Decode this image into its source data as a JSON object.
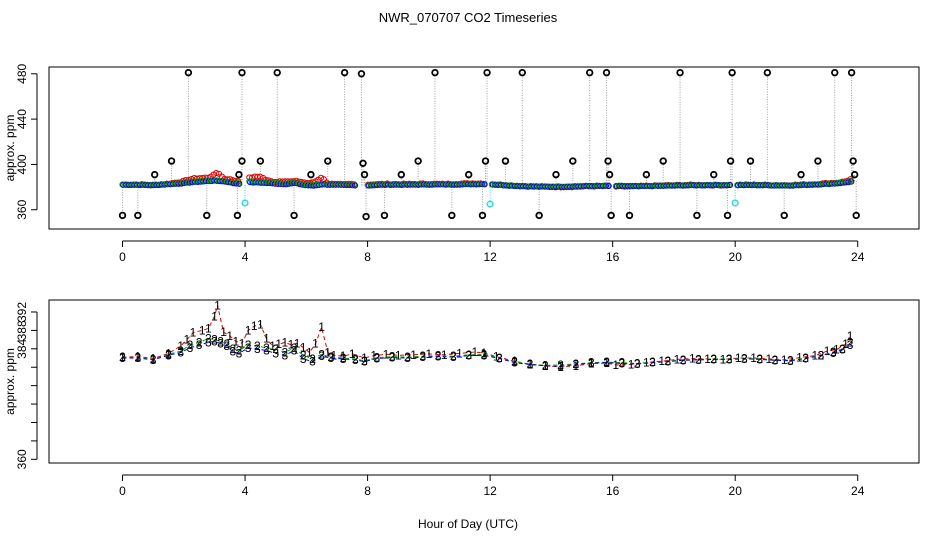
{
  "title": "NWR_070707  CO2 Timeseries",
  "xlabel": "Hour of Day (UTC)",
  "colors": {
    "black": "#000000",
    "red": "#e00000",
    "green": "#00b000",
    "blue": "#0000e0",
    "cyan": "#30d8d8",
    "gray": "#a0a0a0"
  },
  "chart_data": [
    {
      "name": "top-panel",
      "type": "scatter",
      "ylabel": "approx. ppm",
      "xlim": [
        -2.4,
        26.0
      ],
      "ylim": [
        343,
        486
      ],
      "xticks": [
        0,
        4,
        8,
        12,
        16,
        20,
        24
      ],
      "xtick_labels": [
        "0",
        "4",
        "8",
        "12",
        "16",
        "20",
        "24"
      ],
      "yticks": [
        360,
        400,
        440,
        480
      ],
      "ytick_labels": [
        "360",
        "400",
        "440",
        "480"
      ],
      "spikes": [
        {
          "x": 0.0,
          "y": 355
        },
        {
          "x": 0.5,
          "y": 355
        },
        {
          "x": 1.05,
          "y": 391
        },
        {
          "x": 1.6,
          "y": 403
        },
        {
          "x": 2.15,
          "y": 481
        },
        {
          "x": 2.75,
          "y": 355
        },
        {
          "x": 3.75,
          "y": 355
        },
        {
          "x": 3.8,
          "y": 391
        },
        {
          "x": 3.9,
          "y": 403
        },
        {
          "x": 3.9,
          "y": 481
        },
        {
          "x": 4.5,
          "y": 403
        },
        {
          "x": 5.05,
          "y": 481
        },
        {
          "x": 5.6,
          "y": 355
        },
        {
          "x": 6.15,
          "y": 391
        },
        {
          "x": 6.7,
          "y": 403
        },
        {
          "x": 7.25,
          "y": 481
        },
        {
          "x": 7.8,
          "y": 480
        },
        {
          "x": 7.85,
          "y": 401
        },
        {
          "x": 7.9,
          "y": 391
        },
        {
          "x": 7.95,
          "y": 354
        },
        {
          "x": 8.55,
          "y": 355
        },
        {
          "x": 9.1,
          "y": 391
        },
        {
          "x": 9.65,
          "y": 403
        },
        {
          "x": 10.2,
          "y": 481
        },
        {
          "x": 10.75,
          "y": 355
        },
        {
          "x": 11.3,
          "y": 391
        },
        {
          "x": 11.75,
          "y": 355
        },
        {
          "x": 11.85,
          "y": 403
        },
        {
          "x": 11.9,
          "y": 481
        },
        {
          "x": 12.5,
          "y": 403
        },
        {
          "x": 13.05,
          "y": 481
        },
        {
          "x": 13.6,
          "y": 355
        },
        {
          "x": 14.15,
          "y": 391
        },
        {
          "x": 14.7,
          "y": 403
        },
        {
          "x": 15.25,
          "y": 481
        },
        {
          "x": 15.8,
          "y": 481
        },
        {
          "x": 15.85,
          "y": 403
        },
        {
          "x": 15.9,
          "y": 391
        },
        {
          "x": 15.95,
          "y": 355
        },
        {
          "x": 16.55,
          "y": 355
        },
        {
          "x": 17.1,
          "y": 391
        },
        {
          "x": 17.65,
          "y": 403
        },
        {
          "x": 18.2,
          "y": 481
        },
        {
          "x": 18.75,
          "y": 355
        },
        {
          "x": 19.3,
          "y": 391
        },
        {
          "x": 19.75,
          "y": 355
        },
        {
          "x": 19.85,
          "y": 403
        },
        {
          "x": 19.9,
          "y": 481
        },
        {
          "x": 20.5,
          "y": 403
        },
        {
          "x": 21.05,
          "y": 481
        },
        {
          "x": 21.6,
          "y": 355
        },
        {
          "x": 22.15,
          "y": 391
        },
        {
          "x": 22.7,
          "y": 403
        },
        {
          "x": 23.25,
          "y": 481
        },
        {
          "x": 23.8,
          "y": 481
        },
        {
          "x": 23.85,
          "y": 403
        },
        {
          "x": 23.9,
          "y": 391
        },
        {
          "x": 23.95,
          "y": 355
        }
      ],
      "cyan_points": [
        {
          "x": 4.0,
          "y": 366
        },
        {
          "x": 12.0,
          "y": 365
        },
        {
          "x": 20.0,
          "y": 366
        }
      ]
    },
    {
      "name": "bottom-panel",
      "type": "scatter",
      "ylabel": "approx. ppm",
      "xlim": [
        -2.4,
        26.0
      ],
      "ylim": [
        359.2,
        394.6
      ],
      "xticks": [
        0,
        4,
        8,
        12,
        16,
        20,
        24
      ],
      "xtick_labels": [
        "0",
        "4",
        "8",
        "12",
        "16",
        "20",
        "24"
      ],
      "yticks": [
        360,
        364,
        368,
        372,
        376,
        380,
        384,
        388,
        392
      ],
      "ytick_labels": [
        "360",
        "",
        "",
        "",
        "",
        "",
        "384",
        "388",
        "392"
      ],
      "series": [
        {
          "name": "1",
          "color": "red",
          "marker": "1",
          "points": [
            [
              0.0,
              382.2
            ],
            [
              0.5,
              382.3
            ],
            [
              1.0,
              381.9
            ],
            [
              1.5,
              383.0
            ],
            [
              1.9,
              384.6
            ],
            [
              2.1,
              386.0
            ],
            [
              2.3,
              387.5
            ],
            [
              2.6,
              388.0
            ],
            [
              2.8,
              388.4
            ],
            [
              3.0,
              391.0
            ],
            [
              3.1,
              393.4
            ],
            [
              3.3,
              387.6
            ],
            [
              3.5,
              386.8
            ],
            [
              3.7,
              385.6
            ],
            [
              3.9,
              385.2
            ],
            [
              4.1,
              388.0
            ],
            [
              4.3,
              388.9
            ],
            [
              4.5,
              389.3
            ],
            [
              4.7,
              386.2
            ],
            [
              4.9,
              384.6
            ],
            [
              5.1,
              385.0
            ],
            [
              5.3,
              385.4
            ],
            [
              5.5,
              384.9
            ],
            [
              5.7,
              385.2
            ],
            [
              5.9,
              384.3
            ],
            [
              6.1,
              383.2
            ],
            [
              6.3,
              385.1
            ],
            [
              6.5,
              388.7
            ],
            [
              6.7,
              383.2
            ],
            [
              6.9,
              382.6
            ],
            [
              7.2,
              382.4
            ],
            [
              7.5,
              382.9
            ],
            [
              7.9,
              382.0
            ],
            [
              8.2,
              382.5
            ],
            [
              8.6,
              382.8
            ],
            [
              9.0,
              382.6
            ],
            [
              9.5,
              382.7
            ],
            [
              10.0,
              382.9
            ],
            [
              10.5,
              382.7
            ],
            [
              11.0,
              383.0
            ],
            [
              11.5,
              383.3
            ],
            [
              11.8,
              383.1
            ],
            [
              12.2,
              382.3
            ],
            [
              12.8,
              381.3
            ],
            [
              13.3,
              380.6
            ],
            [
              13.8,
              380.3
            ],
            [
              14.3,
              380.1
            ],
            [
              14.8,
              380.3
            ],
            [
              15.3,
              380.8
            ],
            [
              15.8,
              380.9
            ],
            [
              16.1,
              380.5
            ],
            [
              16.6,
              380.6
            ],
            [
              17.1,
              381.0
            ],
            [
              17.6,
              381.3
            ],
            [
              18.1,
              381.7
            ],
            [
              18.6,
              381.9
            ],
            [
              19.1,
              381.8
            ],
            [
              19.6,
              381.7
            ],
            [
              20.1,
              382.0
            ],
            [
              20.6,
              382.0
            ],
            [
              21.1,
              381.8
            ],
            [
              21.6,
              381.6
            ],
            [
              22.1,
              382.1
            ],
            [
              22.6,
              382.5
            ],
            [
              23.0,
              383.5
            ],
            [
              23.3,
              383.8
            ],
            [
              23.6,
              385.0
            ],
            [
              23.75,
              386.8
            ]
          ]
        },
        {
          "name": "2",
          "color": "green",
          "marker": "2",
          "points": [
            [
              0.0,
              382.2
            ],
            [
              0.5,
              382.1
            ],
            [
              1.0,
              381.7
            ],
            [
              1.5,
              382.8
            ],
            [
              1.9,
              383.5
            ],
            [
              2.2,
              384.8
            ],
            [
              2.5,
              385.4
            ],
            [
              2.8,
              386.2
            ],
            [
              3.0,
              386.0
            ],
            [
              3.2,
              385.6
            ],
            [
              3.4,
              385.0
            ],
            [
              3.6,
              384.0
            ],
            [
              3.8,
              383.6
            ],
            [
              4.1,
              384.8
            ],
            [
              4.4,
              384.6
            ],
            [
              4.7,
              384.2
            ],
            [
              5.0,
              384.0
            ],
            [
              5.3,
              383.2
            ],
            [
              5.6,
              384.2
            ],
            [
              5.9,
              382.6
            ],
            [
              6.2,
              381.8
            ],
            [
              6.5,
              382.8
            ],
            [
              6.8,
              382.2
            ],
            [
              7.2,
              382.0
            ],
            [
              7.6,
              381.8
            ],
            [
              7.9,
              381.4
            ],
            [
              8.3,
              382.1
            ],
            [
              8.8,
              382.3
            ],
            [
              9.3,
              382.2
            ],
            [
              9.8,
              382.4
            ],
            [
              10.3,
              382.5
            ],
            [
              10.8,
              382.4
            ],
            [
              11.3,
              382.7
            ],
            [
              11.8,
              382.8
            ],
            [
              12.3,
              382.0
            ],
            [
              12.8,
              381.2
            ],
            [
              13.3,
              380.7
            ],
            [
              13.8,
              380.4
            ],
            [
              14.3,
              380.5
            ],
            [
              14.8,
              380.7
            ],
            [
              15.3,
              381.0
            ],
            [
              15.8,
              381.1
            ],
            [
              16.3,
              381.0
            ],
            [
              16.8,
              380.8
            ],
            [
              17.3,
              381.1
            ],
            [
              17.8,
              381.3
            ],
            [
              18.3,
              381.6
            ],
            [
              18.8,
              381.7
            ],
            [
              19.3,
              381.8
            ],
            [
              19.8,
              381.8
            ],
            [
              20.3,
              381.9
            ],
            [
              20.8,
              381.8
            ],
            [
              21.3,
              381.6
            ],
            [
              21.8,
              381.5
            ],
            [
              22.3,
              382.0
            ],
            [
              22.8,
              382.6
            ],
            [
              23.2,
              383.3
            ],
            [
              23.5,
              384.0
            ],
            [
              23.75,
              385.4
            ]
          ]
        },
        {
          "name": "3",
          "color": "blue",
          "marker": "3",
          "points": [
            [
              0.0,
              382.0
            ],
            [
              0.5,
              382.0
            ],
            [
              1.0,
              381.6
            ],
            [
              1.5,
              382.6
            ],
            [
              1.9,
              383.2
            ],
            [
              2.2,
              384.2
            ],
            [
              2.5,
              384.8
            ],
            [
              2.8,
              385.4
            ],
            [
              3.0,
              385.6
            ],
            [
              3.2,
              385.2
            ],
            [
              3.4,
              384.6
            ],
            [
              3.6,
              383.4
            ],
            [
              3.8,
              383.0
            ],
            [
              4.1,
              384.2
            ],
            [
              4.4,
              384.0
            ],
            [
              4.7,
              383.6
            ],
            [
              5.0,
              383.0
            ],
            [
              5.3,
              382.6
            ],
            [
              5.6,
              383.6
            ],
            [
              5.9,
              381.8
            ],
            [
              6.2,
              381.2
            ],
            [
              6.5,
              382.4
            ],
            [
              6.8,
              382.0
            ],
            [
              7.2,
              381.8
            ],
            [
              7.6,
              381.6
            ],
            [
              7.9,
              381.2
            ],
            [
              8.3,
              381.9
            ],
            [
              8.8,
              382.1
            ],
            [
              9.3,
              382.0
            ],
            [
              9.8,
              382.2
            ],
            [
              10.3,
              382.3
            ],
            [
              10.8,
              382.2
            ],
            [
              11.3,
              382.5
            ],
            [
              11.8,
              382.6
            ],
            [
              12.3,
              381.9
            ],
            [
              12.8,
              381.0
            ],
            [
              13.3,
              380.6
            ],
            [
              13.8,
              380.3
            ],
            [
              14.3,
              380.2
            ],
            [
              14.8,
              380.6
            ],
            [
              15.3,
              380.9
            ],
            [
              15.8,
              381.0
            ],
            [
              16.3,
              380.8
            ],
            [
              16.8,
              380.7
            ],
            [
              17.3,
              381.0
            ],
            [
              17.8,
              381.2
            ],
            [
              18.3,
              381.5
            ],
            [
              18.8,
              381.6
            ],
            [
              19.3,
              381.7
            ],
            [
              19.8,
              381.7
            ],
            [
              20.3,
              381.8
            ],
            [
              20.8,
              381.7
            ],
            [
              21.3,
              381.5
            ],
            [
              21.8,
              381.4
            ],
            [
              22.3,
              381.9
            ],
            [
              22.8,
              382.5
            ],
            [
              23.2,
              383.1
            ],
            [
              23.5,
              383.8
            ],
            [
              23.75,
              384.8
            ]
          ]
        }
      ]
    }
  ]
}
